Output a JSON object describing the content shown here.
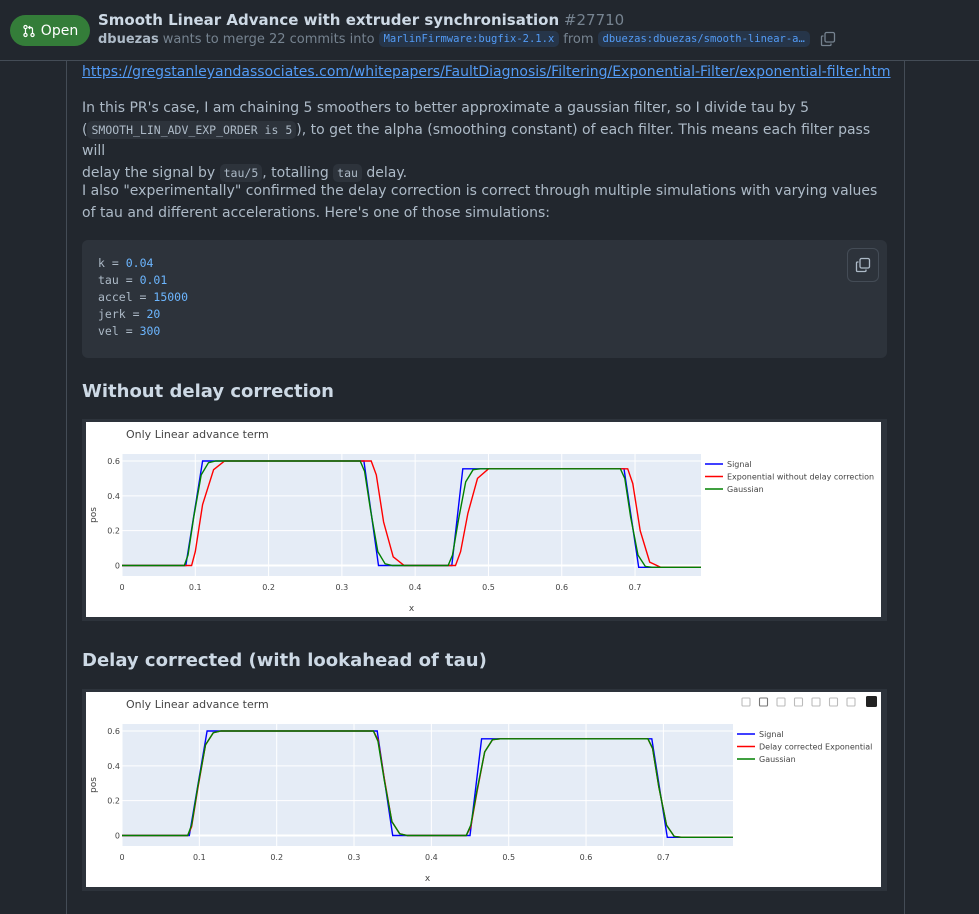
{
  "header": {
    "state": "Open",
    "title": "Smooth Linear Advance with extruder synchronisation",
    "number": "#27710",
    "author": "dbuezas",
    "merge_text": "wants to merge 22 commits into",
    "base_branch": "MarlinFirmware:bugfix-2.1.x",
    "from_text": "from",
    "head_branch": "dbuezas:dbuezas/smooth-linear-a…"
  },
  "body": {
    "link": "https://gregstanleyandassociates.com/whitepapers/FaultDiagnosis/Filtering/Exponential-Filter/exponential-filter.htm",
    "p1_a": "In this PR's case, I am chaining 5 smoothers to better approximate a gaussian filter, so I divide tau by 5",
    "p1_b": "(",
    "p1_code1": "SMOOTH_LIN_ADV_EXP_ORDER is 5",
    "p1_c": "), to get the alpha (smoothing constant) of each filter. This means each filter pass will",
    "p1_d": "delay the signal by",
    "p1_code2": "tau/5",
    "p1_e": ", totalling",
    "p1_code3": "tau",
    "p1_f": "delay.",
    "p2": "I also \"experimentally\" confirmed the delay correction is correct through multiple simulations with varying values of tau and different accelerations. Here's one of those simulations:",
    "code_lines": [
      {
        "name": "k",
        "value": "0.04"
      },
      {
        "name": "tau",
        "value": "0.01"
      },
      {
        "name": "accel",
        "value": "15000"
      },
      {
        "name": "jerk",
        "value": "20"
      },
      {
        "name": "vel",
        "value": "300"
      }
    ],
    "heading1": "Without delay correction",
    "heading2": "Delay corrected (with lookahead of tau)"
  },
  "chart_data": [
    {
      "type": "line",
      "title": "Only Linear advance term",
      "xlabel": "x",
      "ylabel": "pos",
      "xlim": [
        0,
        0.79
      ],
      "ylim": [
        -0.06,
        0.64
      ],
      "xticks": [
        "0",
        "0.1",
        "0.2",
        "0.3",
        "0.4",
        "0.5",
        "0.6",
        "0.7"
      ],
      "yticks": [
        "0",
        "0.2",
        "0.4",
        "0.6"
      ],
      "legend_position": "right",
      "series": [
        {
          "name": "Signal",
          "color": "#0000ff",
          "x": [
            0,
            0.087,
            0.11,
            0.33,
            0.35,
            0.45,
            0.465,
            0.685,
            0.705,
            0.79
          ],
          "y": [
            0,
            0,
            0.6,
            0.6,
            0,
            0,
            0.555,
            0.555,
            -0.01,
            -0.01
          ]
        },
        {
          "name": "Exponential without delay correction",
          "color": "#ff0000",
          "x": [
            0,
            0.095,
            0.1,
            0.11,
            0.125,
            0.14,
            0.34,
            0.347,
            0.357,
            0.37,
            0.385,
            0.455,
            0.462,
            0.472,
            0.485,
            0.5,
            0.69,
            0.697,
            0.707,
            0.72,
            0.735,
            0.79
          ],
          "y": [
            0,
            0,
            0.08,
            0.35,
            0.55,
            0.6,
            0.6,
            0.52,
            0.25,
            0.05,
            0,
            0,
            0.08,
            0.3,
            0.5,
            0.555,
            0.555,
            0.47,
            0.2,
            0.02,
            -0.01,
            -0.01
          ]
        },
        {
          "name": "Gaussian",
          "color": "#008000",
          "x": [
            0,
            0.085,
            0.09,
            0.098,
            0.108,
            0.118,
            0.128,
            0.325,
            0.331,
            0.339,
            0.349,
            0.359,
            0.369,
            0.445,
            0.451,
            0.459,
            0.469,
            0.479,
            0.489,
            0.68,
            0.686,
            0.694,
            0.704,
            0.714,
            0.724,
            0.79
          ],
          "y": [
            0,
            0,
            0.06,
            0.28,
            0.52,
            0.59,
            0.6,
            0.6,
            0.54,
            0.32,
            0.08,
            0.01,
            0,
            0,
            0.06,
            0.26,
            0.48,
            0.55,
            0.555,
            0.555,
            0.5,
            0.28,
            0.06,
            -0.005,
            -0.01,
            -0.01
          ]
        }
      ]
    },
    {
      "type": "line",
      "title": "Only Linear advance term",
      "xlabel": "x",
      "ylabel": "pos",
      "xlim": [
        0,
        0.79
      ],
      "ylim": [
        -0.06,
        0.64
      ],
      "xticks": [
        "0",
        "0.1",
        "0.2",
        "0.3",
        "0.4",
        "0.5",
        "0.6",
        "0.7"
      ],
      "yticks": [
        "0",
        "0.2",
        "0.4",
        "0.6"
      ],
      "legend_position": "right",
      "series": [
        {
          "name": "Signal",
          "color": "#0000ff",
          "x": [
            0,
            0.087,
            0.11,
            0.33,
            0.35,
            0.45,
            0.465,
            0.685,
            0.705,
            0.79
          ],
          "y": [
            0,
            0,
            0.6,
            0.6,
            0,
            0,
            0.555,
            0.555,
            -0.01,
            -0.01
          ]
        },
        {
          "name": "Delay corrected Exponential",
          "color": "#ff0000",
          "x": [
            0,
            0.085,
            0.09,
            0.098,
            0.108,
            0.118,
            0.128,
            0.325,
            0.331,
            0.339,
            0.349,
            0.359,
            0.369,
            0.445,
            0.451,
            0.459,
            0.469,
            0.479,
            0.489,
            0.68,
            0.686,
            0.694,
            0.704,
            0.714,
            0.724,
            0.79
          ],
          "y": [
            0,
            0,
            0.05,
            0.27,
            0.52,
            0.59,
            0.6,
            0.6,
            0.55,
            0.33,
            0.08,
            0.01,
            0,
            0,
            0.05,
            0.25,
            0.48,
            0.55,
            0.555,
            0.555,
            0.5,
            0.28,
            0.06,
            -0.005,
            -0.01,
            -0.01
          ]
        },
        {
          "name": "Gaussian",
          "color": "#008000",
          "x": [
            0,
            0.085,
            0.09,
            0.098,
            0.108,
            0.118,
            0.128,
            0.325,
            0.331,
            0.339,
            0.349,
            0.359,
            0.369,
            0.445,
            0.451,
            0.459,
            0.469,
            0.479,
            0.489,
            0.68,
            0.686,
            0.694,
            0.704,
            0.714,
            0.724,
            0.79
          ],
          "y": [
            0,
            0,
            0.06,
            0.28,
            0.52,
            0.59,
            0.6,
            0.6,
            0.54,
            0.32,
            0.08,
            0.01,
            0,
            0,
            0.06,
            0.26,
            0.48,
            0.55,
            0.555,
            0.555,
            0.5,
            0.28,
            0.06,
            -0.005,
            -0.01,
            -0.01
          ]
        }
      ]
    }
  ]
}
